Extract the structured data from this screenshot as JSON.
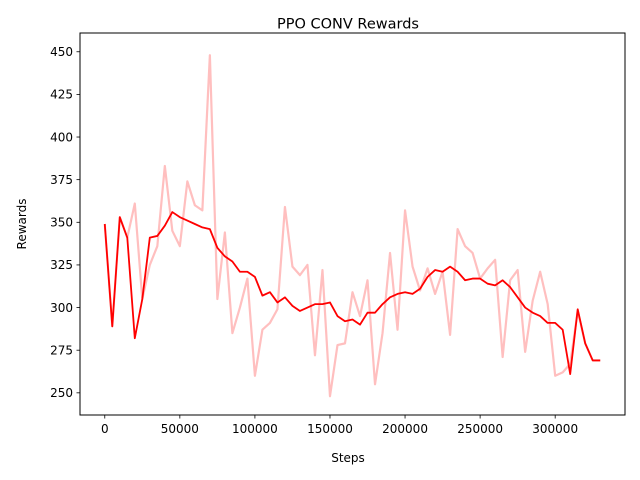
{
  "chart_data": {
    "type": "line",
    "title": "PPO CONV Rewards",
    "xlabel": "Steps",
    "ylabel": "Rewards",
    "xlim": [
      -16500,
      346500
    ],
    "ylim": [
      237,
      461
    ],
    "x_ticks": [
      0,
      50000,
      100000,
      150000,
      200000,
      250000,
      300000
    ],
    "y_ticks": [
      250,
      275,
      300,
      325,
      350,
      375,
      400,
      425,
      450
    ],
    "grid": false,
    "legend": "none",
    "series": [
      {
        "role": "raw",
        "color": "#ffbfbf",
        "x": [
          0,
          5000,
          10000,
          15000,
          20000,
          25000,
          30000,
          35000,
          40000,
          45000,
          50000,
          55000,
          60000,
          65000,
          70000,
          75000,
          80000,
          85000,
          90000,
          95000,
          100000,
          105000,
          110000,
          115000,
          120000,
          125000,
          130000,
          135000,
          140000,
          145000,
          150000,
          155000,
          160000,
          165000,
          170000,
          175000,
          180000,
          185000,
          190000,
          195000,
          200000,
          205000,
          210000,
          215000,
          220000,
          225000,
          230000,
          235000,
          240000,
          245000,
          250000,
          255000,
          260000,
          265000,
          270000,
          275000,
          280000,
          285000,
          290000,
          295000,
          300000,
          305000,
          310000,
          315000,
          320000,
          325000,
          330000
        ],
        "y": [
          349,
          289,
          353,
          341,
          361,
          305,
          325,
          336,
          383,
          345,
          336,
          374,
          360,
          357,
          448,
          305,
          344,
          285,
          300,
          317,
          260,
          287,
          291,
          299,
          359,
          324,
          319,
          325,
          272,
          322,
          248,
          278,
          279,
          309,
          295,
          316,
          255,
          285,
          332,
          287,
          357,
          324,
          310,
          323,
          308,
          321,
          284,
          346,
          336,
          332,
          317,
          323,
          328,
          271,
          316,
          322,
          274,
          304,
          321,
          302,
          260,
          262,
          267,
          298,
          279,
          269,
          269
        ]
      },
      {
        "role": "smoothed",
        "color": "#ff0000",
        "x": [
          0,
          5000,
          10000,
          15000,
          20000,
          25000,
          30000,
          35000,
          40000,
          45000,
          50000,
          55000,
          60000,
          65000,
          70000,
          75000,
          80000,
          85000,
          90000,
          95000,
          100000,
          105000,
          110000,
          115000,
          120000,
          125000,
          130000,
          135000,
          140000,
          145000,
          150000,
          155000,
          160000,
          165000,
          170000,
          175000,
          180000,
          185000,
          190000,
          195000,
          200000,
          205000,
          210000,
          215000,
          220000,
          225000,
          230000,
          235000,
          240000,
          245000,
          250000,
          255000,
          260000,
          265000,
          270000,
          275000,
          280000,
          285000,
          290000,
          295000,
          300000,
          305000,
          310000,
          315000,
          320000,
          325000,
          330000
        ],
        "y": [
          349,
          289,
          353,
          341,
          282,
          305,
          341,
          342,
          348,
          356,
          353,
          351,
          349,
          347,
          346,
          335,
          330,
          327,
          321,
          321,
          318,
          307,
          309,
          303,
          306,
          301,
          298,
          300,
          302,
          302,
          303,
          295,
          292,
          293,
          290,
          297,
          297,
          302,
          306,
          308,
          309,
          308,
          311,
          318,
          322,
          321,
          324,
          321,
          316,
          317,
          317,
          314,
          313,
          316,
          312,
          306,
          300,
          297,
          295,
          291,
          291,
          287,
          261,
          299,
          279,
          269,
          269
        ]
      }
    ]
  }
}
